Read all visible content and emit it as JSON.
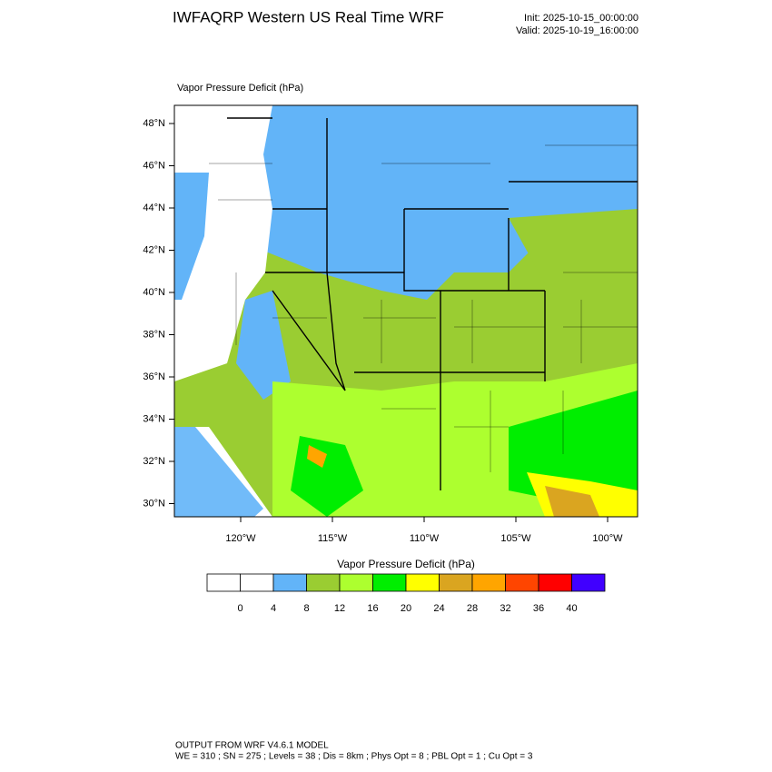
{
  "header": {
    "title": "IWFAQRP Western US Real Time WRF",
    "init": "Init: 2025-10-15_00:00:00",
    "valid": "Valid: 2025-10-19_16:00:00"
  },
  "map": {
    "title": "Vapor Pressure Deficit   (hPa)",
    "lat_labels": [
      "48°N",
      "46°N",
      "44°N",
      "42°N",
      "40°N",
      "38°N",
      "36°N",
      "34°N",
      "32°N",
      "30°N"
    ],
    "lon_labels": [
      "120°W",
      "115°W",
      "110°W",
      "105°W",
      "100°W"
    ]
  },
  "colorbar": {
    "title": "Vapor Pressure Deficit  (hPa)",
    "levels": [
      0,
      4,
      8,
      12,
      16,
      20,
      24,
      28,
      32,
      36,
      40
    ],
    "colors": [
      "#ffffff",
      "#ffffff",
      "#62b4f8",
      "#9acd32",
      "#adff2f",
      "#00ee00",
      "#ffff00",
      "#daa520",
      "#ffa500",
      "#ff4500",
      "#ff0000",
      "#4000ff"
    ]
  },
  "footer": {
    "line1": "OUTPUT FROM WRF V4.6.1 MODEL",
    "line2": "WE = 310 ; SN = 275 ; Levels = 38 ; Dis = 8km ; Phys Opt = 8 ; PBL Opt = 1 ; Cu Opt = 3"
  }
}
